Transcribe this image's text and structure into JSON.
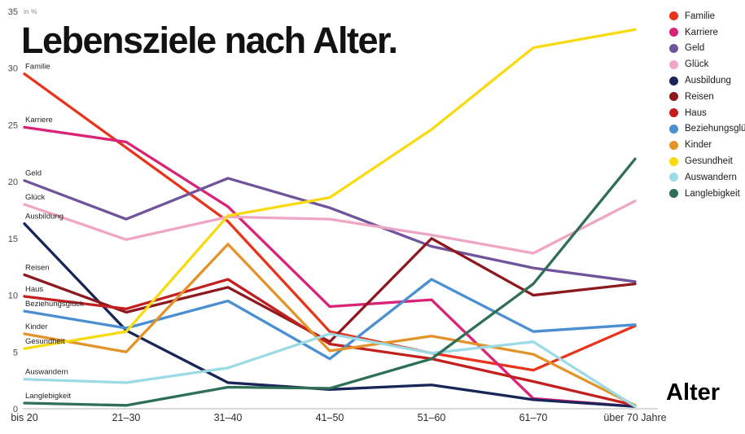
{
  "title": "Lebensziele nach Alter.",
  "y_axis": {
    "unit_label": "in %",
    "ticks": [
      0,
      5,
      10,
      15,
      20,
      25,
      30,
      35
    ]
  },
  "x_axis": {
    "label": "Alter",
    "categories": [
      "bis 20",
      "21–30",
      "31–40",
      "41–50",
      "51–60",
      "61–70",
      "über 70 Jahre"
    ]
  },
  "chart_data": {
    "type": "line",
    "title": "Lebensziele nach Alter.",
    "xlabel": "Alter",
    "ylabel": "in %",
    "ylim": [
      0,
      35
    ],
    "grid": false,
    "legend_position": "top-right",
    "categories": [
      "bis 20",
      "21–30",
      "31–40",
      "41–50",
      "51–60",
      "61–70",
      "über 70 Jahre"
    ],
    "series": [
      {
        "name": "Familie",
        "color": "#e8341c",
        "values": [
          29.5,
          23.0,
          16.5,
          6.8,
          4.9,
          3.4,
          7.3
        ]
      },
      {
        "name": "Karriere",
        "color": "#d82377",
        "values": [
          24.8,
          23.5,
          17.8,
          9.0,
          9.6,
          0.9,
          0.2
        ]
      },
      {
        "name": "Geld",
        "color": "#70549b",
        "values": [
          20.1,
          16.7,
          20.3,
          17.7,
          14.3,
          12.4,
          11.2
        ]
      },
      {
        "name": "Glück",
        "color": "#efa6c5",
        "values": [
          18.0,
          14.9,
          16.9,
          16.7,
          15.3,
          13.7,
          18.3
        ]
      },
      {
        "name": "Ausbildung",
        "color": "#182557",
        "values": [
          16.3,
          6.9,
          2.3,
          1.7,
          2.1,
          0.8,
          0.2
        ]
      },
      {
        "name": "Reisen",
        "color": "#8c191d",
        "values": [
          11.8,
          8.5,
          10.7,
          5.9,
          15.0,
          10.0,
          11.0
        ]
      },
      {
        "name": "Haus",
        "color": "#c2201f",
        "values": [
          9.9,
          8.8,
          11.4,
          5.7,
          4.4,
          2.4,
          0.3
        ]
      },
      {
        "name": "Beziehungsglück",
        "color": "#4a8fd2",
        "values": [
          8.6,
          7.1,
          9.5,
          4.4,
          11.4,
          6.8,
          7.4
        ]
      },
      {
        "name": "Kinder",
        "color": "#e2932a",
        "values": [
          6.6,
          5.0,
          14.5,
          5.1,
          6.4,
          4.8,
          0.3
        ]
      },
      {
        "name": "Gesundheit",
        "color": "#f9da10",
        "values": [
          5.3,
          6.8,
          17.0,
          18.6,
          24.6,
          31.8,
          33.4
        ]
      },
      {
        "name": "Auswandern",
        "color": "#9cdbe5",
        "values": [
          2.6,
          2.3,
          3.6,
          6.6,
          4.9,
          5.9,
          0.2
        ]
      },
      {
        "name": "Langlebigkeit",
        "color": "#2f6f55",
        "values": [
          0.5,
          0.3,
          1.9,
          1.8,
          4.4,
          11.0,
          22.0
        ]
      }
    ]
  }
}
